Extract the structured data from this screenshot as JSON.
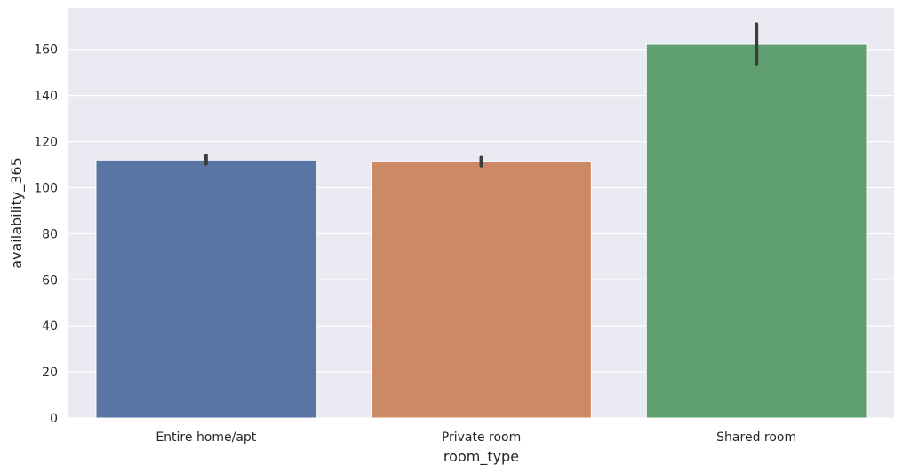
{
  "chart_data": {
    "type": "bar",
    "title": "",
    "xlabel": "room_type",
    "ylabel": "availability_365",
    "categories": [
      "Entire home/apt",
      "Private room",
      "Shared room"
    ],
    "values": [
      112,
      111.3,
      162.2
    ],
    "error_bars": [
      [
        110.4,
        114.0
      ],
      [
        109.5,
        113.1
      ],
      [
        153.8,
        170.9
      ]
    ],
    "colors": [
      "#5975a4",
      "#cc8963",
      "#5f9e6e"
    ],
    "ylim": [
      0,
      178
    ],
    "yticks": [
      0,
      20,
      40,
      60,
      80,
      100,
      120,
      140,
      160
    ],
    "grid": true,
    "background": "#eaeaf2"
  }
}
